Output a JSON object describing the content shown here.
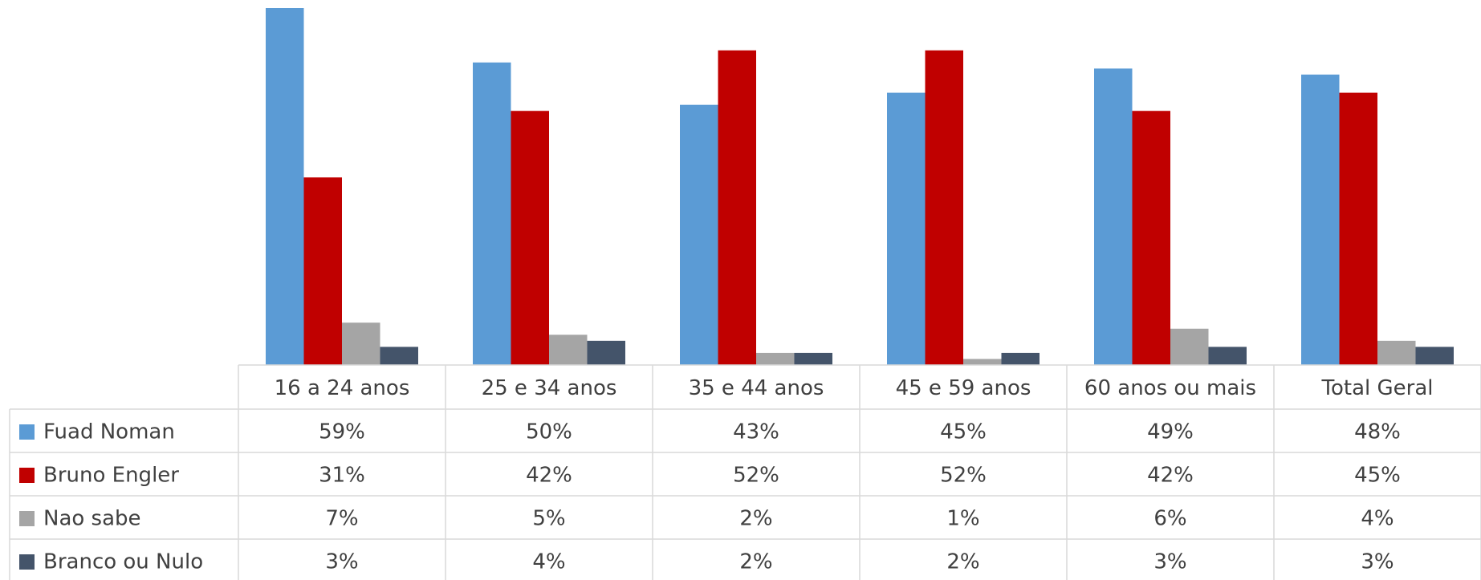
{
  "chart_data": {
    "type": "bar",
    "categories": [
      "16 a 24 anos",
      "25 e 34 anos",
      "35 e 44 anos",
      "45 e 59 anos",
      "60 anos ou mais",
      "Total Geral"
    ],
    "series": [
      {
        "name": "Fuad Noman",
        "color": "#5b9bd5",
        "values": [
          59,
          50,
          43,
          45,
          49,
          48
        ],
        "value_labels": [
          "59%",
          "50%",
          "43%",
          "45%",
          "49%",
          "48%"
        ]
      },
      {
        "name": "Bruno Engler",
        "color": "#c00000",
        "values": [
          31,
          42,
          52,
          52,
          42,
          45
        ],
        "value_labels": [
          "31%",
          "42%",
          "52%",
          "52%",
          "42%",
          "45%"
        ]
      },
      {
        "name": "Nao sabe",
        "color": "#a5a5a5",
        "values": [
          7,
          5,
          2,
          1,
          6,
          4
        ],
        "value_labels": [
          "7%",
          "5%",
          "2%",
          "1%",
          "6%",
          "4%"
        ]
      },
      {
        "name": "Branco ou Nulo",
        "color": "#44546a",
        "values": [
          3,
          4,
          2,
          2,
          3,
          3
        ],
        "value_labels": [
          "3%",
          "4%",
          "2%",
          "2%",
          "3%",
          "3%"
        ]
      }
    ]
  }
}
